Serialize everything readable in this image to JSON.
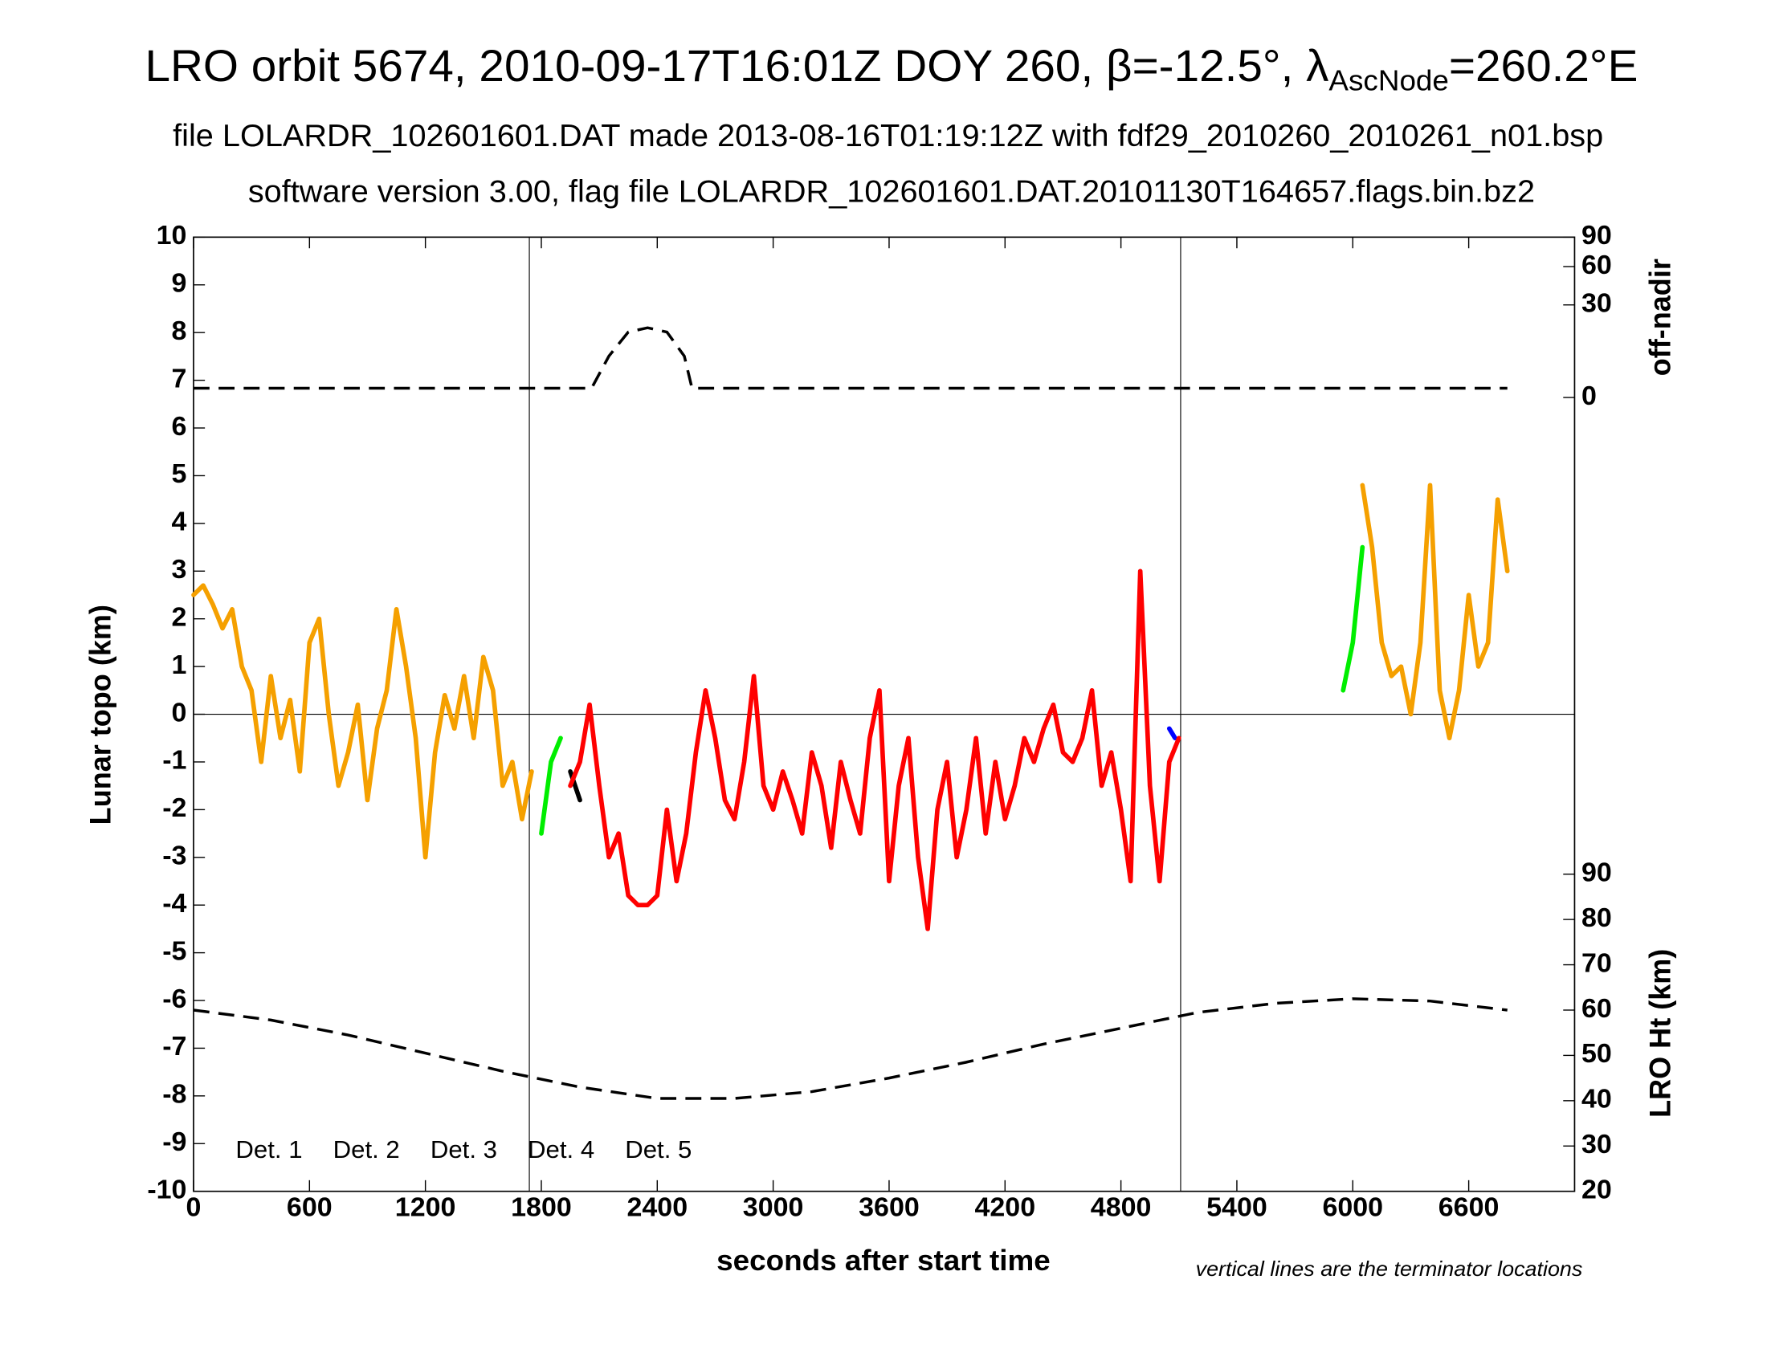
{
  "chart_data": {
    "type": "line",
    "title": [
      "LRO orbit 5674, 2010-09-17T16:01Z DOY 260, β=-12.5°, λ",
      "AscNode",
      "=260.2°E"
    ],
    "subtitle": [
      "file LOLARDR_102601601.DAT made 2013-08-16T01:19:12Z with fdf29_2010260_2010261_n01.bsp",
      "software version 3.00, flag file LOLARDR_102601601.DAT.20101130T164657.flags.bin.bz2"
    ],
    "xlabel": "seconds after start time",
    "ylabel": "Lunar topo (km)",
    "y2label": "LRO Ht (km)",
    "y3label": "off-nadir",
    "note": "vertical lines are the terminator locations",
    "xlim": [
      0,
      7148
    ],
    "xticks": [
      0,
      600,
      1200,
      1800,
      2400,
      3000,
      3600,
      4200,
      4800,
      5400,
      6000,
      6600
    ],
    "ylim": [
      -10,
      10
    ],
    "yticks": [
      -10,
      -9,
      -8,
      -7,
      -6,
      -5,
      -4,
      -3,
      -2,
      -1,
      0,
      1,
      2,
      3,
      4,
      5,
      6,
      7,
      8,
      9,
      10
    ],
    "y2lim": [
      20,
      230.6
    ],
    "y2ticks": [
      20,
      30,
      40,
      50,
      60,
      70,
      80,
      90
    ],
    "y3lim": [
      0,
      90
    ],
    "y3scale": "sqrt",
    "y3ticks": [
      0,
      30,
      60,
      90
    ],
    "terminators": [
      1738,
      5109
    ],
    "legend": "lower left",
    "series": [
      {
        "name": "Det. 1",
        "color": "#000000",
        "x": [
          1950,
          2000
        ],
        "values": [
          -1.2,
          -1.8
        ]
      },
      {
        "name": "Det. 2",
        "color": "#0000ff",
        "x": [
          5050,
          5080
        ],
        "values": [
          -0.3,
          -0.5
        ]
      },
      {
        "name": "Det. 3",
        "color": "#00ee00",
        "x": [
          1800,
          1850,
          1900,
          5900,
          5950,
          6000,
          6050
        ],
        "values": [
          -2.5,
          -1.0,
          -0.5,
          null,
          0.5,
          1.5,
          3.5
        ]
      },
      {
        "name": "Det. 4",
        "color": "#f5a000",
        "x": [
          0,
          50,
          100,
          150,
          200,
          250,
          300,
          350,
          400,
          450,
          500,
          550,
          600,
          650,
          700,
          750,
          800,
          850,
          900,
          950,
          1000,
          1050,
          1100,
          1150,
          1200,
          1250,
          1300,
          1350,
          1400,
          1450,
          1500,
          1550,
          1600,
          1650,
          1700,
          1750,
          3900,
          6050,
          6100,
          6150,
          6200,
          6250,
          6300,
          6350,
          6400,
          6450,
          6500,
          6550,
          6600,
          6650,
          6700,
          6750,
          6800
        ],
        "values": [
          2.5,
          2.7,
          2.3,
          1.8,
          2.2,
          1.0,
          0.5,
          -1.0,
          0.8,
          -0.5,
          0.3,
          -1.2,
          1.5,
          2.0,
          0.0,
          -1.5,
          -0.8,
          0.2,
          -1.8,
          -0.3,
          0.5,
          2.2,
          1.0,
          -0.5,
          -3.0,
          -0.8,
          0.4,
          -0.3,
          0.8,
          -0.5,
          1.2,
          0.5,
          -1.5,
          -1.0,
          -2.2,
          -1.2,
          null,
          4.8,
          3.5,
          1.5,
          0.8,
          1.0,
          0.0,
          1.5,
          4.8,
          0.5,
          -0.5,
          0.5,
          2.5,
          1.0,
          1.5,
          4.5,
          3.0
        ]
      },
      {
        "name": "Det. 5",
        "color": "#ff0000",
        "x": [
          1950,
          2000,
          2050,
          2100,
          2150,
          2200,
          2250,
          2300,
          2350,
          2400,
          2450,
          2500,
          2550,
          2600,
          2650,
          2700,
          2750,
          2800,
          2850,
          2900,
          2950,
          3000,
          3050,
          3100,
          3150,
          3200,
          3250,
          3300,
          3350,
          3400,
          3450,
          3500,
          3550,
          3600,
          3650,
          3700,
          3750,
          3800,
          3850,
          3900,
          3950,
          4000,
          4050,
          4100,
          4150,
          4200,
          4250,
          4300,
          4350,
          4400,
          4450,
          4500,
          4550,
          4600,
          4650,
          4700,
          4750,
          4800,
          4850,
          4900,
          4950,
          5000,
          5050,
          5100
        ],
        "values": [
          -1.5,
          -1.0,
          0.2,
          -1.5,
          -3.0,
          -2.5,
          -3.8,
          -4.0,
          -4.0,
          -3.8,
          -2.0,
          -3.5,
          -2.5,
          -0.8,
          0.5,
          -0.5,
          -1.8,
          -2.2,
          -1.0,
          0.8,
          -1.5,
          -2.0,
          -1.2,
          -1.8,
          -2.5,
          -0.8,
          -1.5,
          -2.8,
          -1.0,
          -1.8,
          -2.5,
          -0.5,
          0.5,
          -3.5,
          -1.5,
          -0.5,
          -3.0,
          -4.5,
          -2.0,
          -1.0,
          -3.0,
          -2.0,
          -0.5,
          -2.5,
          -1.0,
          -2.2,
          -1.5,
          -0.5,
          -1.0,
          -0.3,
          0.2,
          -0.8,
          -1.0,
          -0.5,
          0.5,
          -1.5,
          -0.8,
          -2.0,
          -3.5,
          3.0,
          -1.5,
          -3.5,
          -1.0,
          -0.5
        ]
      }
    ],
    "off_nadir": {
      "x": [
        0,
        2060,
        2150,
        2250,
        2350,
        2450,
        2540,
        2580,
        6800
      ],
      "values": [
        0.3,
        0.3,
        6,
        15,
        17,
        15,
        6,
        0.3,
        0.3
      ]
    },
    "height": {
      "x": [
        0,
        400,
        800,
        1200,
        1600,
        2000,
        2400,
        2800,
        3200,
        3600,
        4000,
        4400,
        4800,
        5200,
        5600,
        6000,
        6400,
        6800
      ],
      "values": [
        60,
        57.8,
        54.5,
        50.5,
        46.5,
        43,
        40.5,
        40.5,
        42,
        45,
        48.5,
        52.5,
        56,
        59.5,
        61.5,
        62.5,
        62,
        60
      ]
    }
  }
}
